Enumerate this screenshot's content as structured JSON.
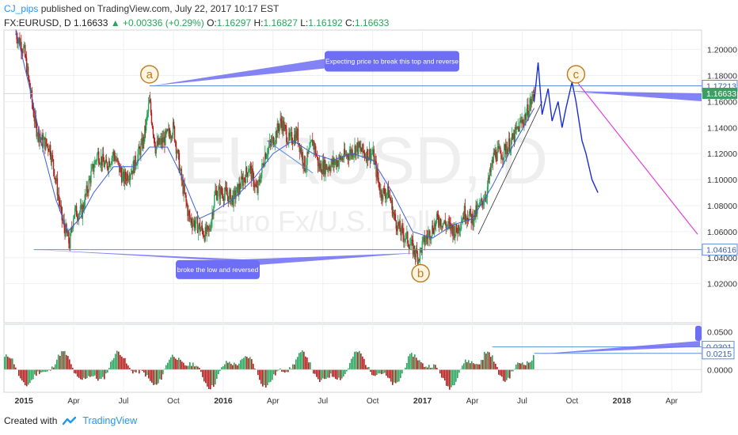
{
  "header": {
    "author": "CJ_pips",
    "published_text": "published on TradingView.com, July 22, 2017 10:17 EST"
  },
  "ohlc": {
    "symbol": "FX:EURUSD, D",
    "last": "1.16633",
    "change": "▲ +0.00336 (+0.29%)",
    "o_label": "O:",
    "o": "1.16297",
    "h_label": "H:",
    "h": "1.16827",
    "l_label": "L:",
    "l": "1.16192",
    "c_label": "C:",
    "c": "1.16633"
  },
  "watermark": {
    "symbol": "EURUSD, D",
    "name": "Euro Fx/U.S. Dollar"
  },
  "footer": {
    "created_with": "Created with",
    "brand": "TradingView"
  },
  "colors": {
    "bull": "#26a65b",
    "bear": "#b71c1c",
    "ma": "#3f5fd6",
    "level_line": "#5b8fd6",
    "projection": "#1b2fd1",
    "forecast": "#e040d8",
    "callout": "#6d6df5",
    "wave_label": "#b97a1f",
    "last_price_bg": "#3d9e63"
  },
  "chart_data": {
    "type": "candlestick",
    "symbol": "FX:EURUSD",
    "timeframe": "D",
    "x_tick_labels": [
      "2015",
      "Apr",
      "Jul",
      "Oct",
      "2016",
      "Apr",
      "Jul",
      "Oct",
      "2017",
      "Apr",
      "Jul",
      "Oct",
      "2018",
      "Apr"
    ],
    "x_ticks": [
      2015.0,
      2015.25,
      2015.5,
      2015.75,
      2016.0,
      2016.25,
      2016.5,
      2016.75,
      2017.0,
      2017.25,
      2017.5,
      2017.75,
      2018.0,
      2018.25
    ],
    "xlim": [
      2014.9,
      2018.4
    ],
    "price_axis": {
      "ylim": [
        0.99,
        1.215
      ],
      "tick_labels": [
        "1.20000",
        "1.18000",
        "1.16000",
        "1.14000",
        "1.12000",
        "1.10000",
        "1.08000",
        "1.06000",
        "1.04000",
        "1.02000"
      ],
      "ticks": [
        1.2,
        1.18,
        1.16,
        1.14,
        1.12,
        1.1,
        1.08,
        1.06,
        1.04,
        1.02
      ]
    },
    "close_path": [
      [
        2014.96,
        1.212
      ],
      [
        2015.0,
        1.2
      ],
      [
        2015.03,
        1.17
      ],
      [
        2015.06,
        1.14
      ],
      [
        2015.09,
        1.13
      ],
      [
        2015.13,
        1.125
      ],
      [
        2015.16,
        1.1
      ],
      [
        2015.19,
        1.07
      ],
      [
        2015.21,
        1.06
      ],
      [
        2015.23,
        1.05
      ],
      [
        2015.25,
        1.075
      ],
      [
        2015.29,
        1.075
      ],
      [
        2015.33,
        1.1
      ],
      [
        2015.37,
        1.12
      ],
      [
        2015.41,
        1.11
      ],
      [
        2015.45,
        1.12
      ],
      [
        2015.5,
        1.1
      ],
      [
        2015.55,
        1.11
      ],
      [
        2015.6,
        1.13
      ],
      [
        2015.63,
        1.16
      ],
      [
        2015.66,
        1.125
      ],
      [
        2015.7,
        1.13
      ],
      [
        2015.75,
        1.14
      ],
      [
        2015.79,
        1.1
      ],
      [
        2015.83,
        1.07
      ],
      [
        2015.87,
        1.065
      ],
      [
        2015.91,
        1.058
      ],
      [
        2015.93,
        1.06
      ],
      [
        2015.96,
        1.09
      ],
      [
        2016.0,
        1.09
      ],
      [
        2016.05,
        1.085
      ],
      [
        2016.1,
        1.1
      ],
      [
        2016.13,
        1.11
      ],
      [
        2016.17,
        1.09
      ],
      [
        2016.21,
        1.12
      ],
      [
        2016.25,
        1.13
      ],
      [
        2016.29,
        1.145
      ],
      [
        2016.33,
        1.13
      ],
      [
        2016.37,
        1.135
      ],
      [
        2016.41,
        1.11
      ],
      [
        2016.45,
        1.13
      ],
      [
        2016.48,
        1.11
      ],
      [
        2016.52,
        1.11
      ],
      [
        2016.58,
        1.115
      ],
      [
        2016.63,
        1.12
      ],
      [
        2016.67,
        1.125
      ],
      [
        2016.71,
        1.12
      ],
      [
        2016.75,
        1.12
      ],
      [
        2016.79,
        1.09
      ],
      [
        2016.83,
        1.09
      ],
      [
        2016.86,
        1.07
      ],
      [
        2016.89,
        1.06
      ],
      [
        2016.92,
        1.055
      ],
      [
        2016.96,
        1.045
      ],
      [
        2016.98,
        1.04
      ],
      [
        2017.0,
        1.05
      ],
      [
        2017.04,
        1.06
      ],
      [
        2017.08,
        1.07
      ],
      [
        2017.12,
        1.065
      ],
      [
        2017.17,
        1.06
      ],
      [
        2017.21,
        1.075
      ],
      [
        2017.25,
        1.07
      ],
      [
        2017.29,
        1.08
      ],
      [
        2017.32,
        1.09
      ],
      [
        2017.36,
        1.12
      ],
      [
        2017.4,
        1.12
      ],
      [
        2017.45,
        1.13
      ],
      [
        2017.48,
        1.14
      ],
      [
        2017.52,
        1.15
      ],
      [
        2017.56,
        1.1663
      ]
    ],
    "moving_average": [
      [
        2014.96,
        1.215
      ],
      [
        2015.03,
        1.17
      ],
      [
        2015.1,
        1.12
      ],
      [
        2015.16,
        1.085
      ],
      [
        2015.22,
        1.06
      ],
      [
        2015.28,
        1.07
      ],
      [
        2015.35,
        1.09
      ],
      [
        2015.45,
        1.11
      ],
      [
        2015.55,
        1.11
      ],
      [
        2015.63,
        1.125
      ],
      [
        2015.72,
        1.125
      ],
      [
        2015.8,
        1.1
      ],
      [
        2015.88,
        1.07
      ],
      [
        2015.95,
        1.075
      ],
      [
        2016.05,
        1.085
      ],
      [
        2016.15,
        1.1
      ],
      [
        2016.25,
        1.12
      ],
      [
        2016.35,
        1.13
      ],
      [
        2016.45,
        1.12
      ],
      [
        2016.55,
        1.115
      ],
      [
        2016.65,
        1.12
      ],
      [
        2016.75,
        1.115
      ],
      [
        2016.85,
        1.09
      ],
      [
        2016.95,
        1.06
      ],
      [
        2017.05,
        1.055
      ],
      [
        2017.15,
        1.065
      ],
      [
        2017.25,
        1.07
      ],
      [
        2017.35,
        1.095
      ],
      [
        2017.45,
        1.125
      ],
      [
        2017.56,
        1.155
      ]
    ],
    "horizontal_levels": [
      {
        "price": 1.17213,
        "label": "1.17213"
      },
      {
        "price": 1.04616,
        "label": "1.04616"
      }
    ],
    "last_price": {
      "price": 1.16633,
      "label": "1.16633"
    },
    "gray_reference_line": 1.1662,
    "support_trendline": [
      [
        2017.28,
        1.058
      ],
      [
        2017.6,
        1.16
      ]
    ],
    "mini_trendline": [
      [
        2016.22,
        1.13
      ],
      [
        2016.45,
        1.105
      ]
    ],
    "projection_path": [
      [
        2017.56,
        1.16
      ],
      [
        2017.58,
        1.19
      ],
      [
        2017.6,
        1.15
      ],
      [
        2017.63,
        1.17
      ],
      [
        2017.65,
        1.145
      ],
      [
        2017.68,
        1.16
      ],
      [
        2017.7,
        1.14
      ],
      [
        2017.72,
        1.155
      ],
      [
        2017.75,
        1.175
      ],
      [
        2017.77,
        1.16
      ],
      [
        2017.8,
        1.13
      ],
      [
        2017.82,
        1.12
      ],
      [
        2017.85,
        1.1
      ],
      [
        2017.88,
        1.09
      ]
    ],
    "forecast_line": [
      [
        2017.75,
        1.18
      ],
      [
        2018.38,
        1.058
      ]
    ],
    "wave_labels": [
      {
        "label": "a",
        "x": 2015.63,
        "price": 1.181
      },
      {
        "label": "b",
        "x": 2016.99,
        "price": 1.028
      },
      {
        "label": "c",
        "x": 2017.77,
        "price": 1.181
      }
    ],
    "annotations": [
      {
        "text": "Expecting price to break this top and reverse",
        "x": 2017.0,
        "price": 1.191
      },
      {
        "text": "broke the low and reversed",
        "x": 2016.25,
        "price": 1.032
      }
    ],
    "oscillator": {
      "type": "histogram",
      "ylim": [
        -0.03,
        0.06
      ],
      "tick_labels": [
        "0.0500",
        "0.0000"
      ],
      "ticks": [
        0.05,
        0.0
      ],
      "markers": [
        {
          "value": 0.0301,
          "label": "0.0301"
        },
        {
          "value": 0.0215,
          "label": "0.0215"
        }
      ],
      "level_lines": [
        0.0301,
        0.0215
      ]
    }
  }
}
